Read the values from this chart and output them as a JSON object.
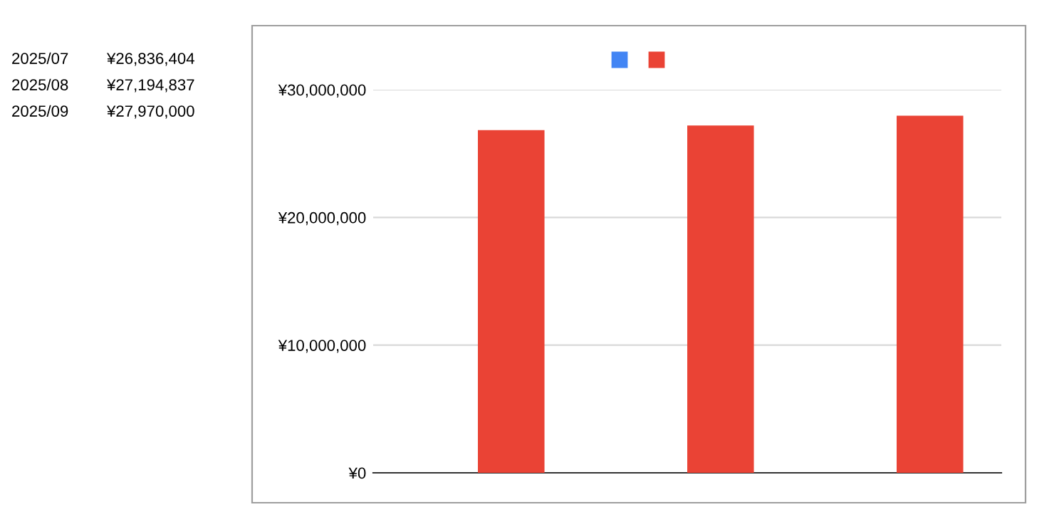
{
  "chart_data": {
    "type": "bar",
    "categories": [
      null,
      null,
      null
    ],
    "series": [
      {
        "color": "#4285f4",
        "values": [
          null,
          null,
          null
        ]
      },
      {
        "color": "#ea4335",
        "values": [
          26836404,
          27194837,
          27970000
        ]
      }
    ],
    "ylim": [
      0,
      30000000
    ],
    "yticks": [
      {
        "value": 0,
        "label": "¥0"
      },
      {
        "value": 10000000,
        "label": "¥10,000,000"
      },
      {
        "value": 20000000,
        "label": "¥20,000,000"
      },
      {
        "value": 30000000,
        "label": "¥30,000,000"
      }
    ],
    "grid": "y",
    "tick_labels": "y",
    "annotations": [
      "2025/07",
      "¥26,836,404",
      "2025/08",
      "¥27,194,837",
      "2025/09",
      "¥27,970,000"
    ]
  }
}
